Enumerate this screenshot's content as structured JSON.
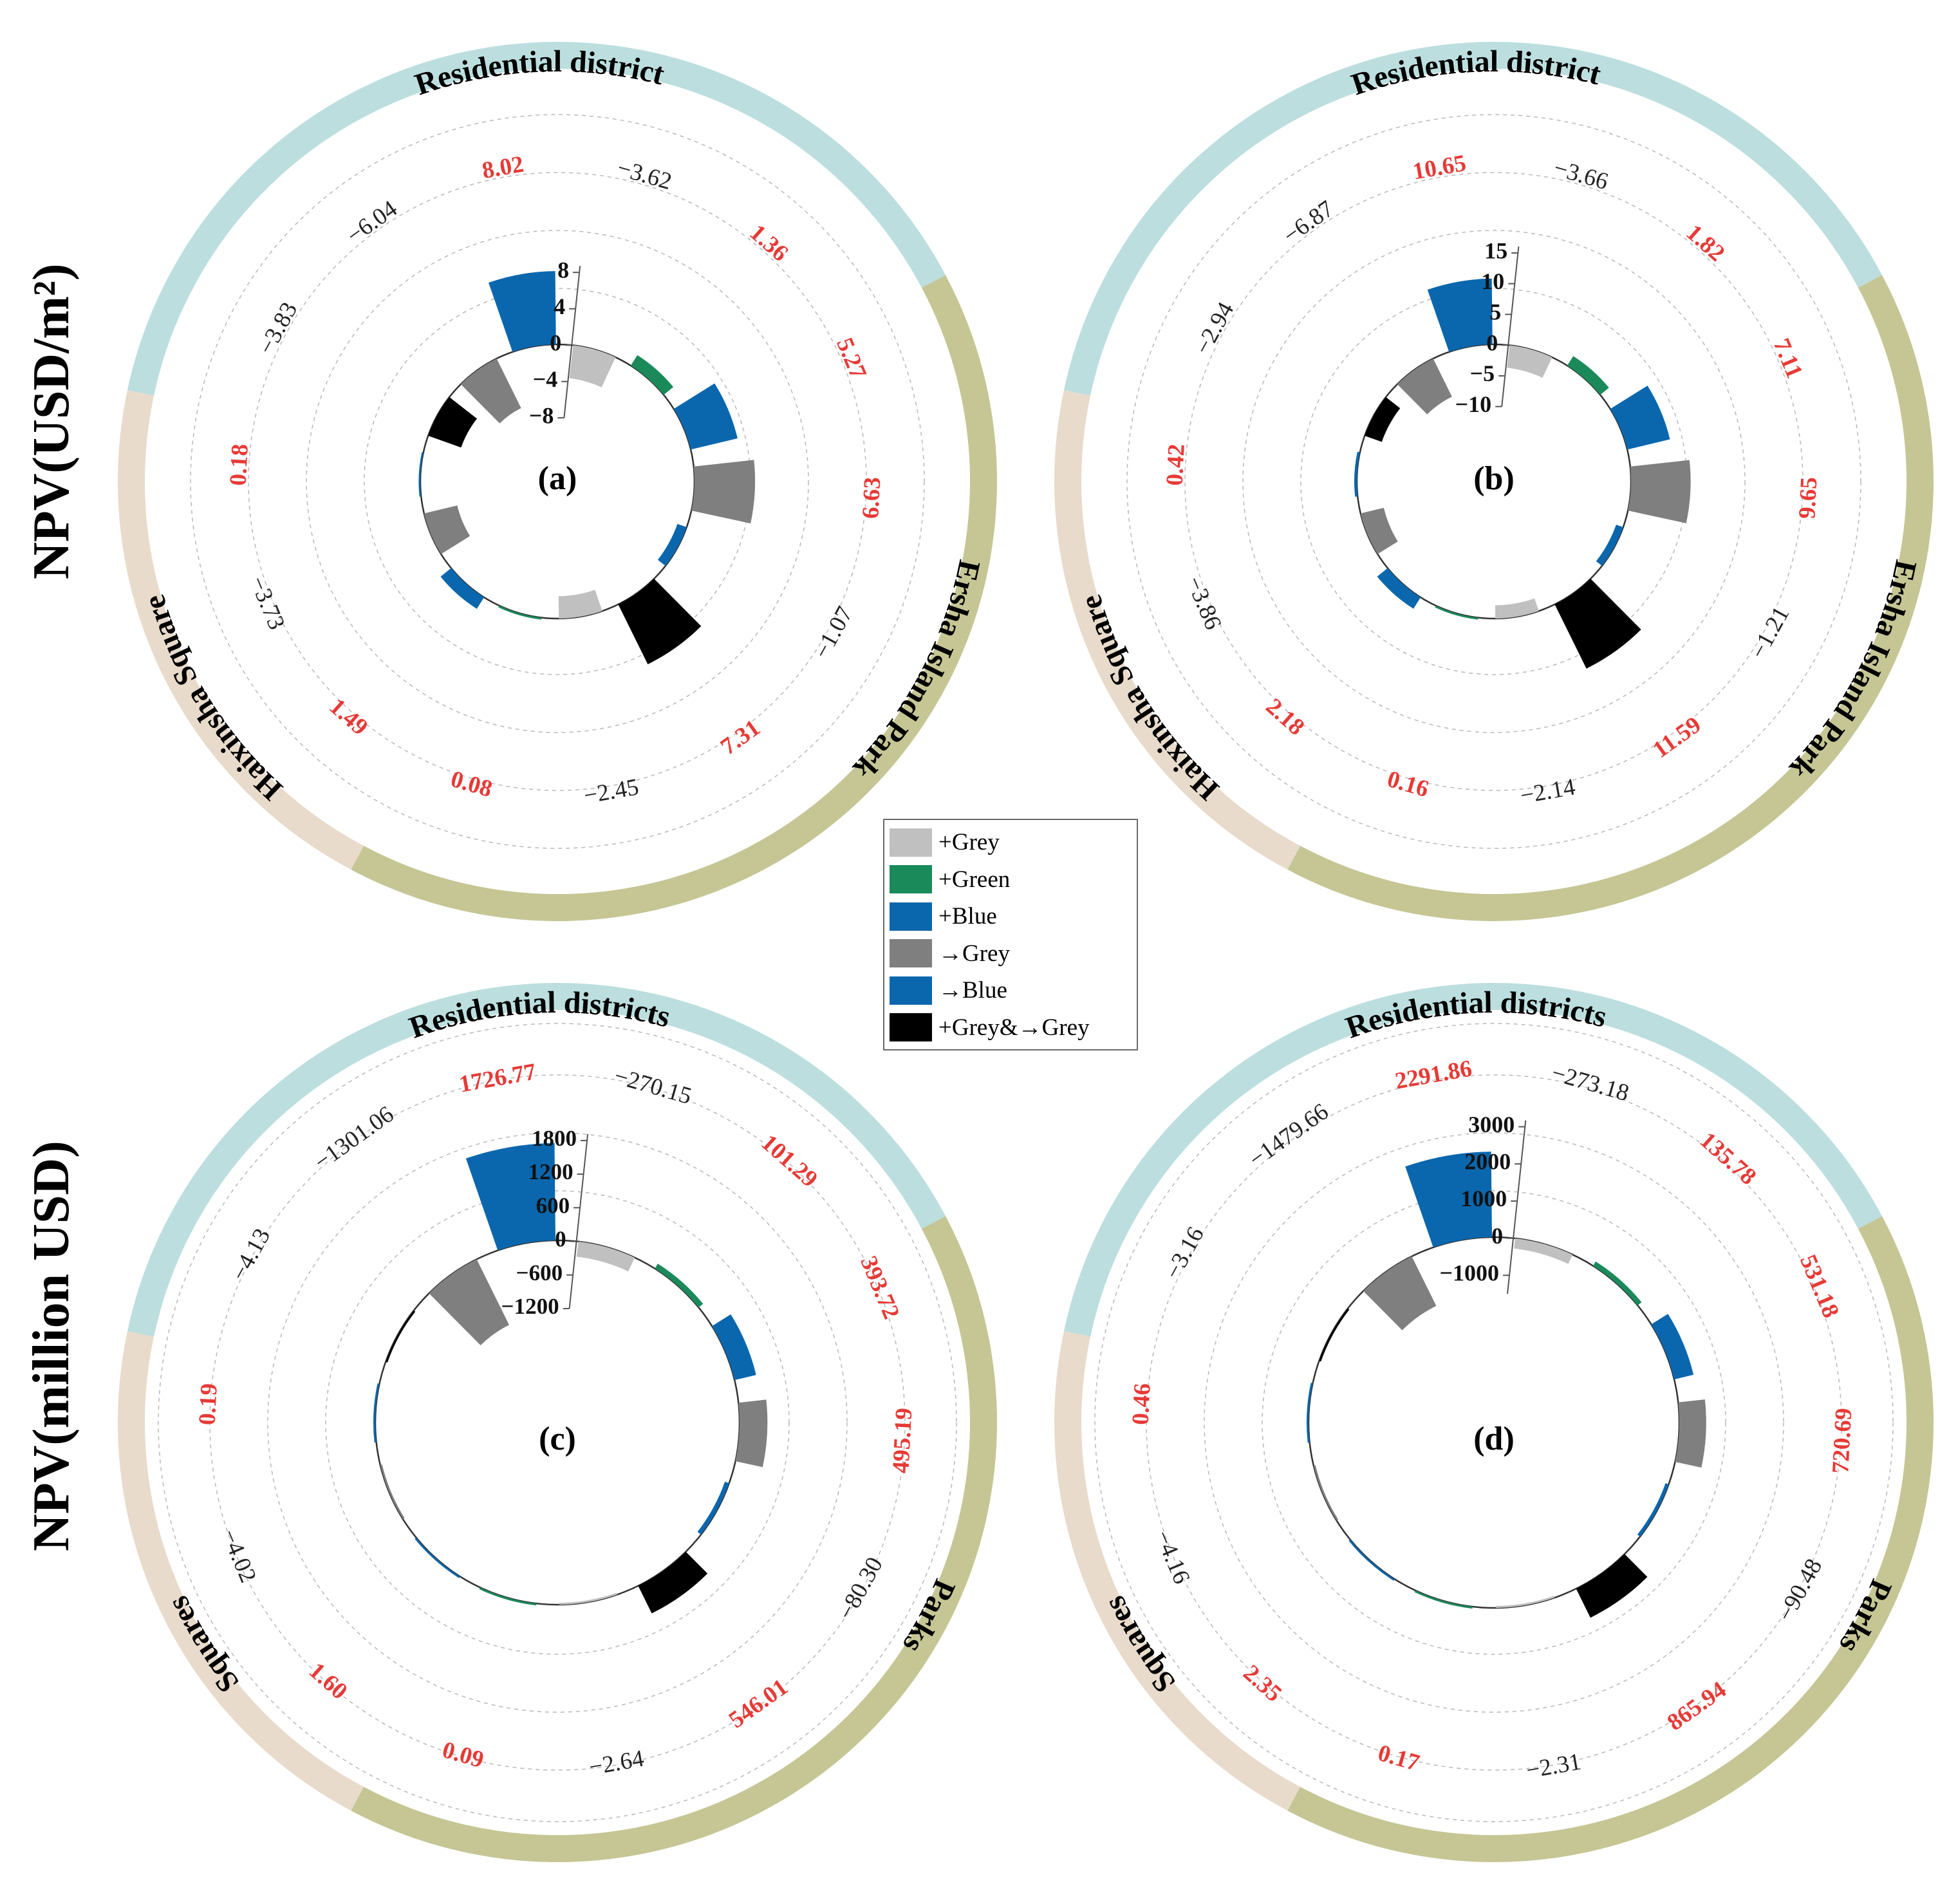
{
  "figure": {
    "ylabel_top": "NPV(USD/m²)",
    "ylabel_bottom": "NPV(million USD)"
  },
  "legend": [
    {
      "label": "+Grey",
      "color": "#c0c0c0"
    },
    {
      "label": "+Green",
      "color": "#1a8a5a"
    },
    {
      "label": "+Blue",
      "color": "#0a67ae"
    },
    {
      "label": "→Grey",
      "color": "#7f7f7f"
    },
    {
      "label": "→Blue",
      "color": "#0a67ae"
    },
    {
      "label": "+Grey&→Grey",
      "color": "#000000"
    }
  ],
  "colors": {
    "ring_residential": "#bcdede",
    "ring_park": "#c5c694",
    "ring_square": "#e8dbcb",
    "label_positive": "#e63a36",
    "label_negative": "#222222"
  },
  "chart_data": [
    {
      "type": "radial-bar",
      "panel_label": "(a)",
      "sectors": [
        {
          "name": "Residential district",
          "category": "residential"
        },
        {
          "name": "Ersha Island Park",
          "category": "park"
        },
        {
          "name": "Haixinsha Square",
          "category": "square"
        }
      ],
      "radial_ticks": [
        "8",
        "4",
        "0",
        "−4",
        "−8"
      ],
      "ylim": [
        -8,
        8
      ],
      "labels": [
        {
          "text": "−3.62",
          "sign": "neg"
        },
        {
          "text": "1.36",
          "sign": "pos"
        },
        {
          "text": "5.27",
          "sign": "pos"
        },
        {
          "text": "6.63",
          "sign": "pos"
        },
        {
          "text": "−1.07",
          "sign": "neg"
        },
        {
          "text": "7.31",
          "sign": "pos"
        },
        {
          "text": "−2.45",
          "sign": "neg"
        },
        {
          "text": "0.08",
          "sign": "pos"
        },
        {
          "text": "1.49",
          "sign": "pos"
        },
        {
          "text": "−3.73",
          "sign": "neg"
        },
        {
          "text": "0.18",
          "sign": "pos"
        },
        {
          "text": "−3.83",
          "sign": "neg"
        },
        {
          "text": "−6.04",
          "sign": "neg"
        },
        {
          "text": "8.02",
          "sign": "pos"
        }
      ],
      "bars": [
        {
          "type": "+Grey",
          "value": -3.62
        },
        {
          "type": "+Green",
          "value": 1.36
        },
        {
          "type": "+Blue",
          "value": 5.27
        },
        {
          "type": "→Grey",
          "value": 6.63
        },
        {
          "type": "→Blue",
          "value": -1.07
        },
        {
          "type": "+Grey&→Grey",
          "value": 7.31
        },
        {
          "type": "+Grey",
          "value": -2.45
        },
        {
          "type": "+Green",
          "value": 0.08
        },
        {
          "type": "+Blue",
          "value": 1.49
        },
        {
          "type": "→Grey",
          "value": -3.73
        },
        {
          "type": "→Blue",
          "value": 0.18
        },
        {
          "type": "+Grey&→Grey",
          "value": -3.83
        },
        {
          "type": "→Grey",
          "value": -6.04
        },
        {
          "type": "+Blue",
          "value": 8.02
        }
      ]
    },
    {
      "type": "radial-bar",
      "panel_label": "(b)",
      "sectors": [
        {
          "name": "Residential district",
          "category": "residential"
        },
        {
          "name": "Ersha Island Park",
          "category": "park"
        },
        {
          "name": "Haixinsha Square",
          "category": "square"
        }
      ],
      "radial_ticks": [
        "15",
        "10",
        "5",
        "0",
        "−5",
        "−10"
      ],
      "ylim": [
        -10,
        15
      ],
      "labels": [
        {
          "text": "−3.66",
          "sign": "neg"
        },
        {
          "text": "1.82",
          "sign": "pos"
        },
        {
          "text": "7.11",
          "sign": "pos"
        },
        {
          "text": "9.65",
          "sign": "pos"
        },
        {
          "text": "−1.21",
          "sign": "neg"
        },
        {
          "text": "11.59",
          "sign": "pos"
        },
        {
          "text": "−2.14",
          "sign": "neg"
        },
        {
          "text": "0.16",
          "sign": "pos"
        },
        {
          "text": "2.18",
          "sign": "pos"
        },
        {
          "text": "−3.86",
          "sign": "neg"
        },
        {
          "text": "0.42",
          "sign": "pos"
        },
        {
          "text": "−2.94",
          "sign": "neg"
        },
        {
          "text": "−6.87",
          "sign": "neg"
        },
        {
          "text": "10.65",
          "sign": "pos"
        }
      ],
      "bars": [
        {
          "type": "+Grey",
          "value": -3.66
        },
        {
          "type": "+Green",
          "value": 1.82
        },
        {
          "type": "+Blue",
          "value": 7.11
        },
        {
          "type": "→Grey",
          "value": 9.65
        },
        {
          "type": "→Blue",
          "value": -1.21
        },
        {
          "type": "+Grey&→Grey",
          "value": 11.59
        },
        {
          "type": "+Grey",
          "value": -2.14
        },
        {
          "type": "+Green",
          "value": 0.16
        },
        {
          "type": "+Blue",
          "value": 2.18
        },
        {
          "type": "→Grey",
          "value": -3.86
        },
        {
          "type": "→Blue",
          "value": 0.42
        },
        {
          "type": "+Grey&→Grey",
          "value": -2.94
        },
        {
          "type": "→Grey",
          "value": -6.87
        },
        {
          "type": "+Blue",
          "value": 10.65
        }
      ]
    },
    {
      "type": "radial-bar",
      "panel_label": "(c)",
      "sectors": [
        {
          "name": "Residential districts",
          "category": "residential"
        },
        {
          "name": "Parks",
          "category": "park"
        },
        {
          "name": "Squares",
          "category": "square"
        }
      ],
      "radial_ticks": [
        "1800",
        "1200",
        "600",
        "0",
        "−600",
        "−1200"
      ],
      "ylim": [
        -1200,
        1800
      ],
      "labels": [
        {
          "text": "−270.15",
          "sign": "neg"
        },
        {
          "text": "101.29",
          "sign": "pos"
        },
        {
          "text": "393.72",
          "sign": "pos"
        },
        {
          "text": "495.19",
          "sign": "pos"
        },
        {
          "text": "−80.30",
          "sign": "neg"
        },
        {
          "text": "546.01",
          "sign": "pos"
        },
        {
          "text": "−2.64",
          "sign": "neg"
        },
        {
          "text": "0.09",
          "sign": "pos"
        },
        {
          "text": "1.60",
          "sign": "pos"
        },
        {
          "text": "−4.02",
          "sign": "neg"
        },
        {
          "text": "0.19",
          "sign": "pos"
        },
        {
          "text": "−4.13",
          "sign": "neg"
        },
        {
          "text": "−1301.06",
          "sign": "neg"
        },
        {
          "text": "1726.77",
          "sign": "pos"
        }
      ],
      "bars": [
        {
          "type": "+Grey",
          "value": -270.15
        },
        {
          "type": "+Green",
          "value": 101.29
        },
        {
          "type": "+Blue",
          "value": 393.72
        },
        {
          "type": "→Grey",
          "value": 495.19
        },
        {
          "type": "→Blue",
          "value": -80.3
        },
        {
          "type": "+Grey&→Grey",
          "value": 546.01
        },
        {
          "type": "+Grey",
          "value": -2.64
        },
        {
          "type": "+Green",
          "value": 0.09
        },
        {
          "type": "+Blue",
          "value": 1.6
        },
        {
          "type": "→Grey",
          "value": -4.02
        },
        {
          "type": "→Blue",
          "value": 0.19
        },
        {
          "type": "+Grey&→Grey",
          "value": -4.13
        },
        {
          "type": "→Grey",
          "value": -1301.06
        },
        {
          "type": "+Blue",
          "value": 1726.77
        }
      ]
    },
    {
      "type": "radial-bar",
      "panel_label": "(d)",
      "sectors": [
        {
          "name": "Residential districts",
          "category": "residential"
        },
        {
          "name": "Parks",
          "category": "park"
        },
        {
          "name": "Squares",
          "category": "square"
        }
      ],
      "radial_ticks": [
        "3000",
        "2000",
        "1000",
        "0",
        "−1000"
      ],
      "ylim": [
        -1500,
        3000
      ],
      "labels": [
        {
          "text": "−273.18",
          "sign": "neg"
        },
        {
          "text": "135.78",
          "sign": "pos"
        },
        {
          "text": "531.18",
          "sign": "pos"
        },
        {
          "text": "720.69",
          "sign": "pos"
        },
        {
          "text": "−90.48",
          "sign": "neg"
        },
        {
          "text": "865.94",
          "sign": "pos"
        },
        {
          "text": "−2.31",
          "sign": "neg"
        },
        {
          "text": "0.17",
          "sign": "pos"
        },
        {
          "text": "2.35",
          "sign": "pos"
        },
        {
          "text": "−4.16",
          "sign": "neg"
        },
        {
          "text": "0.46",
          "sign": "pos"
        },
        {
          "text": "−3.16",
          "sign": "neg"
        },
        {
          "text": "−1479.66",
          "sign": "neg"
        },
        {
          "text": "2291.86",
          "sign": "pos"
        }
      ],
      "bars": [
        {
          "type": "+Grey",
          "value": -273.18
        },
        {
          "type": "+Green",
          "value": 135.78
        },
        {
          "type": "+Blue",
          "value": 531.18
        },
        {
          "type": "→Grey",
          "value": 720.69
        },
        {
          "type": "→Blue",
          "value": -90.48
        },
        {
          "type": "+Grey&→Grey",
          "value": 865.94
        },
        {
          "type": "+Grey",
          "value": -2.31
        },
        {
          "type": "+Green",
          "value": 0.17
        },
        {
          "type": "+Blue",
          "value": 2.35
        },
        {
          "type": "→Grey",
          "value": -4.16
        },
        {
          "type": "→Blue",
          "value": 0.46
        },
        {
          "type": "+Grey&→Grey",
          "value": -3.16
        },
        {
          "type": "→Grey",
          "value": -1479.66
        },
        {
          "type": "+Blue",
          "value": 2291.86
        }
      ]
    }
  ]
}
